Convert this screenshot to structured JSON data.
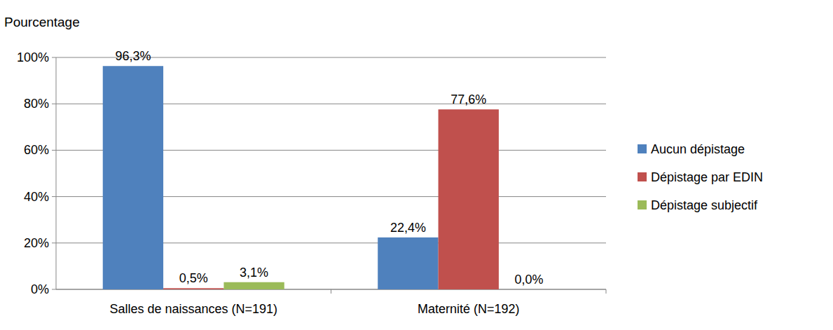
{
  "chart_data": {
    "type": "bar",
    "y_label": "Pourcentage",
    "categories": [
      "Salles de naissances (N=191)",
      "Maternité (N=192)"
    ],
    "series": [
      {
        "name": "Aucun dépistage",
        "color": "#4f81bd",
        "values": [
          96.3,
          22.4
        ],
        "value_labels": [
          "96,3%",
          "22,4%"
        ]
      },
      {
        "name": "Dépistage par EDIN",
        "color": "#c0504d",
        "values": [
          0.5,
          77.6
        ],
        "value_labels": [
          "0,5%",
          "77,6%"
        ]
      },
      {
        "name": "Dépistage subjectif",
        "color": "#9bbb59",
        "values": [
          3.1,
          0.0
        ],
        "value_labels": [
          "3,1%",
          "0,0%"
        ]
      }
    ],
    "ylim": [
      0,
      100
    ],
    "yticks": [
      {
        "value": 0,
        "label": "0%"
      },
      {
        "value": 20,
        "label": "20%"
      },
      {
        "value": 40,
        "label": "40%"
      },
      {
        "value": 60,
        "label": "60%"
      },
      {
        "value": 80,
        "label": "80%"
      },
      {
        "value": 100,
        "label": "100%"
      }
    ],
    "grid": true,
    "legend": "right",
    "data_labels": true
  }
}
